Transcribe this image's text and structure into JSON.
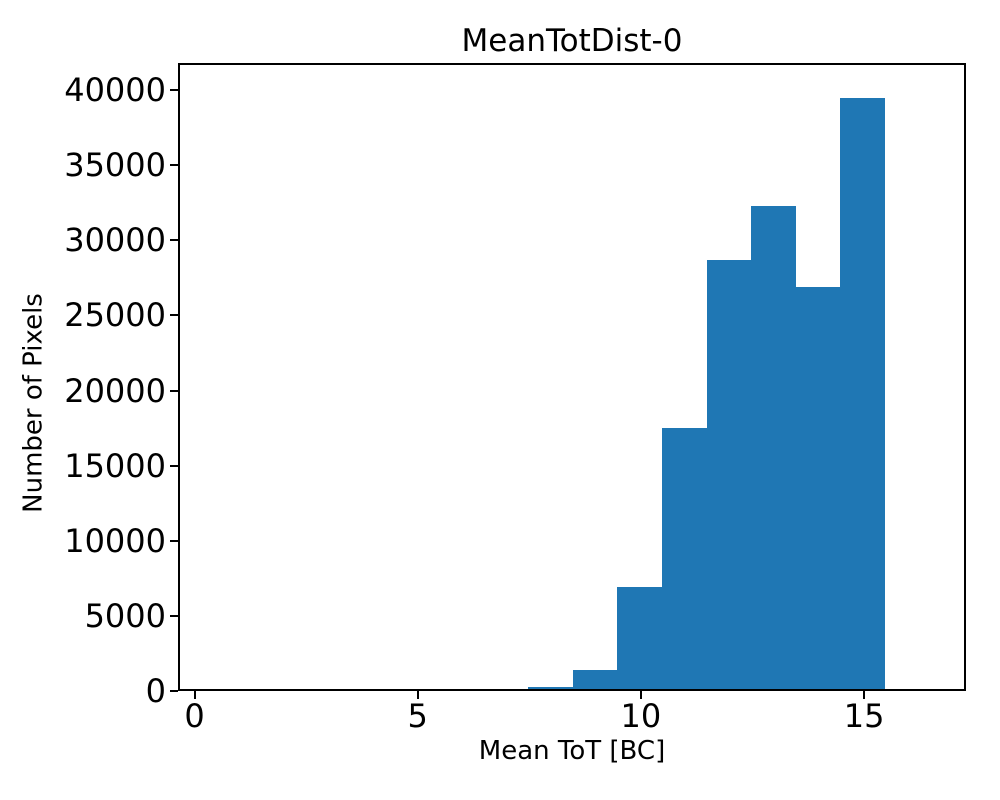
{
  "figure": {
    "title": "MeanTotDist-0",
    "xlabel": "Mean ToT [BC]",
    "ylabel": "Number of Pixels"
  },
  "chart_data": {
    "type": "bar",
    "subtype": "histogram",
    "title": "MeanTotDist-0",
    "xlabel": "Mean ToT [BC]",
    "ylabel": "Number of Pixels",
    "bar_color": "#1f77b4",
    "bin_edges": [
      7.47,
      8.47,
      9.47,
      10.47,
      11.47,
      12.47,
      13.47,
      14.47,
      15.47
    ],
    "counts": [
      250,
      1400,
      6900,
      17500,
      28700,
      32300,
      26900,
      39500
    ],
    "xticks": [
      0,
      5,
      10,
      15
    ],
    "yticks": [
      0,
      5000,
      10000,
      15000,
      20000,
      25000,
      30000,
      35000,
      40000
    ],
    "xlim": [
      -0.37,
      17.28
    ],
    "ylim": [
      0,
      41800
    ],
    "grid": false,
    "legend_position": "none"
  }
}
